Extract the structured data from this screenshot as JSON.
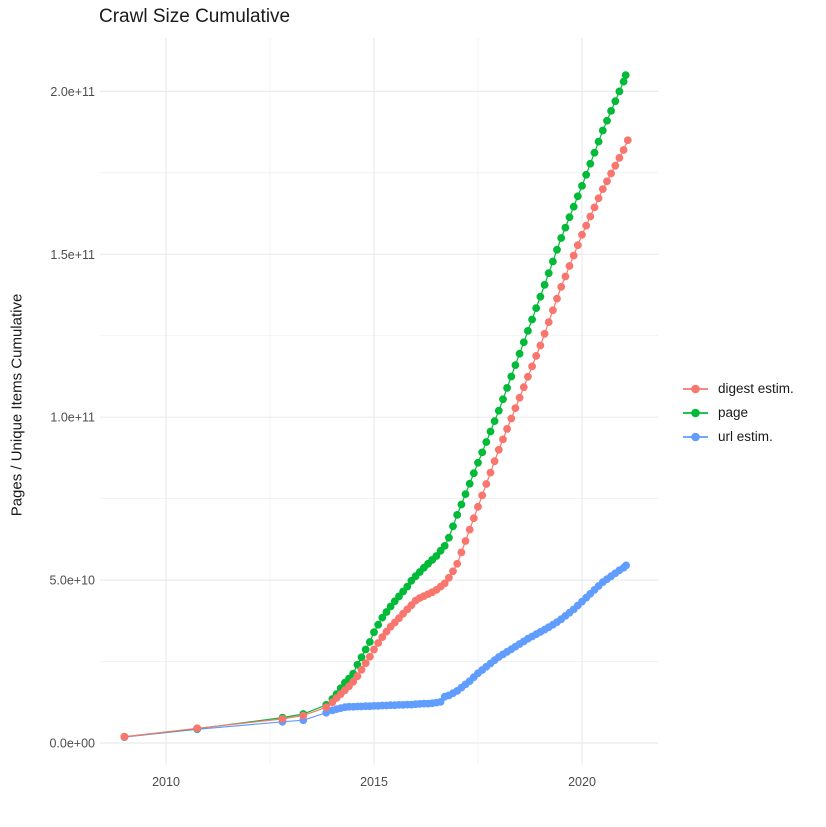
{
  "chart": {
    "title": "Crawl Size Cumulative",
    "y_axis_title": "Pages / Unique Items Cumulative",
    "x_axis": {
      "tick_labels": [
        "2010",
        "2015",
        "2020"
      ],
      "tick_values": [
        2010,
        2015,
        2020
      ],
      "minor_tick_values": [
        2012.5,
        2017.5
      ]
    },
    "y_axis": {
      "tick_labels": [
        "0.0e+00",
        "5.0e+10",
        "1.0e+11",
        "1.5e+11",
        "2.0e+11"
      ],
      "tick_values_billions": [
        0,
        50,
        100,
        150,
        200
      ],
      "minor_tick_values_billions": [
        25,
        75,
        125,
        175
      ]
    },
    "colors": {
      "background": "#FFFFFF",
      "grid": "#EBEBEB",
      "axis_text": "#4D4D4D",
      "title_text": "#1A1A1A",
      "digest": "#F8766D",
      "page": "#00BA38",
      "url": "#619CFF"
    }
  },
  "legend": {
    "items": [
      {
        "label": "digest estim.",
        "color": "#F8766D"
      },
      {
        "label": "page",
        "color": "#00BA38"
      },
      {
        "label": "url estim.",
        "color": "#619CFF"
      }
    ]
  },
  "chart_data": {
    "type": "line",
    "title": "Crawl Size Cumulative",
    "xlabel": "",
    "ylabel": "Pages / Unique Items Cumulative",
    "x_tick_labels": [
      "2010",
      "2015",
      "2020"
    ],
    "y_tick_labels": [
      "0.0e+00",
      "5.0e+10",
      "1.0e+11",
      "1.5e+11",
      "2.0e+11"
    ],
    "value_unit_note": "point y-values stored in billions (1e9 items)",
    "x_range": [
      2008.4,
      2021.8
    ],
    "y_range": [
      0,
      216000000000
    ],
    "grid": true,
    "legend_position": "right",
    "marker": "point",
    "series": [
      {
        "name": "digest estim.",
        "color": "#F8766D",
        "points": [
          [
            2009.0,
            1.9
          ],
          [
            2010.75,
            4.5
          ],
          [
            2012.8,
            7.4
          ],
          [
            2013.3,
            8.4
          ],
          [
            2013.85,
            11.0
          ],
          [
            2014.0,
            12.5
          ],
          [
            2014.1,
            13.8
          ],
          [
            2014.2,
            15.0
          ],
          [
            2014.3,
            16.2
          ],
          [
            2014.4,
            17.4
          ],
          [
            2014.5,
            18.8
          ],
          [
            2014.6,
            20.5
          ],
          [
            2014.7,
            22.5
          ],
          [
            2014.8,
            24.5
          ],
          [
            2014.9,
            26.5
          ],
          [
            2015.0,
            28.7
          ],
          [
            2015.1,
            30.7
          ],
          [
            2015.2,
            32.5
          ],
          [
            2015.3,
            34.2
          ],
          [
            2015.4,
            35.7
          ],
          [
            2015.5,
            37.0
          ],
          [
            2015.6,
            38.3
          ],
          [
            2015.7,
            39.7
          ],
          [
            2015.8,
            41.0
          ],
          [
            2015.9,
            42.3
          ],
          [
            2016.0,
            43.7
          ],
          [
            2016.1,
            44.5
          ],
          [
            2016.2,
            45.1
          ],
          [
            2016.3,
            45.7
          ],
          [
            2016.4,
            46.3
          ],
          [
            2016.5,
            47.0
          ],
          [
            2016.6,
            48.0
          ],
          [
            2016.7,
            49.0
          ],
          [
            2016.8,
            50.7
          ],
          [
            2016.9,
            52.7
          ],
          [
            2017.0,
            55.0
          ],
          [
            2017.1,
            58.5
          ],
          [
            2017.2,
            62.0
          ],
          [
            2017.3,
            65.5
          ],
          [
            2017.4,
            69.0
          ],
          [
            2017.5,
            72.5
          ],
          [
            2017.6,
            76.0
          ],
          [
            2017.7,
            79.5
          ],
          [
            2017.8,
            83.0
          ],
          [
            2017.9,
            86.5
          ],
          [
            2018.0,
            90.0
          ],
          [
            2018.1,
            93.2
          ],
          [
            2018.2,
            96.4
          ],
          [
            2018.3,
            99.6
          ],
          [
            2018.4,
            102.8
          ],
          [
            2018.5,
            106.0
          ],
          [
            2018.6,
            109.2
          ],
          [
            2018.7,
            112.4
          ],
          [
            2018.8,
            115.6
          ],
          [
            2018.9,
            118.8
          ],
          [
            2019.0,
            122.0
          ],
          [
            2019.1,
            125.6
          ],
          [
            2019.2,
            129.2
          ],
          [
            2019.3,
            132.8
          ],
          [
            2019.4,
            136.4
          ],
          [
            2019.5,
            140.0
          ],
          [
            2019.6,
            143.2
          ],
          [
            2019.7,
            146.4
          ],
          [
            2019.8,
            149.6
          ],
          [
            2019.9,
            152.8
          ],
          [
            2020.0,
            156.0
          ],
          [
            2020.1,
            158.8
          ],
          [
            2020.2,
            161.6
          ],
          [
            2020.3,
            164.4
          ],
          [
            2020.4,
            167.2
          ],
          [
            2020.5,
            170.0
          ],
          [
            2020.6,
            172.4
          ],
          [
            2020.7,
            174.8
          ],
          [
            2020.8,
            177.2
          ],
          [
            2020.9,
            179.6
          ],
          [
            2021.0,
            182.0
          ],
          [
            2021.1,
            185.0
          ]
        ]
      },
      {
        "name": "page",
        "color": "#00BA38",
        "points": [
          [
            2009.0,
            1.9
          ],
          [
            2010.75,
            4.4
          ],
          [
            2012.8,
            7.8
          ],
          [
            2013.3,
            8.9
          ],
          [
            2013.85,
            11.7
          ],
          [
            2014.0,
            13.5
          ],
          [
            2014.1,
            15.0
          ],
          [
            2014.2,
            16.8
          ],
          [
            2014.3,
            18.5
          ],
          [
            2014.4,
            19.8
          ],
          [
            2014.5,
            21.3
          ],
          [
            2014.6,
            24.0
          ],
          [
            2014.7,
            26.3
          ],
          [
            2014.8,
            28.7
          ],
          [
            2014.9,
            31.0
          ],
          [
            2015.0,
            34.0
          ],
          [
            2015.1,
            36.3
          ],
          [
            2015.2,
            38.5
          ],
          [
            2015.3,
            40.2
          ],
          [
            2015.4,
            41.9
          ],
          [
            2015.5,
            43.5
          ],
          [
            2015.6,
            45.0
          ],
          [
            2015.7,
            46.5
          ],
          [
            2015.8,
            48.0
          ],
          [
            2015.9,
            49.8
          ],
          [
            2016.0,
            51.2
          ],
          [
            2016.1,
            52.5
          ],
          [
            2016.2,
            53.8
          ],
          [
            2016.3,
            55.0
          ],
          [
            2016.4,
            56.2
          ],
          [
            2016.5,
            57.4
          ],
          [
            2016.6,
            59.0
          ],
          [
            2016.7,
            60.5
          ],
          [
            2016.8,
            63.0
          ],
          [
            2016.9,
            66.5
          ],
          [
            2017.0,
            70.0
          ],
          [
            2017.1,
            73.2
          ],
          [
            2017.2,
            76.4
          ],
          [
            2017.3,
            79.6
          ],
          [
            2017.4,
            82.8
          ],
          [
            2017.5,
            86.0
          ],
          [
            2017.6,
            89.2
          ],
          [
            2017.7,
            92.4
          ],
          [
            2017.8,
            95.6
          ],
          [
            2017.9,
            98.8
          ],
          [
            2018.0,
            102.0
          ],
          [
            2018.1,
            105.5
          ],
          [
            2018.2,
            109.0
          ],
          [
            2018.3,
            112.5
          ],
          [
            2018.4,
            116.0
          ],
          [
            2018.5,
            119.5
          ],
          [
            2018.6,
            123.0
          ],
          [
            2018.7,
            126.5
          ],
          [
            2018.8,
            130.0
          ],
          [
            2018.9,
            133.5
          ],
          [
            2019.0,
            137.0
          ],
          [
            2019.1,
            140.6
          ],
          [
            2019.2,
            144.2
          ],
          [
            2019.3,
            147.8
          ],
          [
            2019.4,
            151.4
          ],
          [
            2019.5,
            155.0
          ],
          [
            2019.6,
            158.2
          ],
          [
            2019.7,
            161.4
          ],
          [
            2019.8,
            164.6
          ],
          [
            2019.9,
            167.8
          ],
          [
            2020.0,
            171.0
          ],
          [
            2020.1,
            174.4
          ],
          [
            2020.2,
            177.8
          ],
          [
            2020.3,
            181.2
          ],
          [
            2020.4,
            184.6
          ],
          [
            2020.5,
            188.0
          ],
          [
            2020.6,
            191.0
          ],
          [
            2020.7,
            194.0
          ],
          [
            2020.8,
            197.0
          ],
          [
            2020.9,
            200.0
          ],
          [
            2021.0,
            203.0
          ],
          [
            2021.05,
            205.0
          ]
        ]
      },
      {
        "name": "url estim.",
        "color": "#619CFF",
        "points": [
          [
            2009.0,
            1.8
          ],
          [
            2010.75,
            4.2
          ],
          [
            2012.8,
            6.5
          ],
          [
            2013.3,
            7.0
          ],
          [
            2013.85,
            9.3
          ],
          [
            2014.0,
            10.0
          ],
          [
            2014.1,
            10.4
          ],
          [
            2014.2,
            10.7
          ],
          [
            2014.3,
            11.0
          ],
          [
            2014.4,
            11.1
          ],
          [
            2014.5,
            11.1
          ],
          [
            2014.6,
            11.2
          ],
          [
            2014.7,
            11.2
          ],
          [
            2014.8,
            11.3
          ],
          [
            2014.9,
            11.3
          ],
          [
            2015.0,
            11.4
          ],
          [
            2015.1,
            11.4
          ],
          [
            2015.2,
            11.5
          ],
          [
            2015.3,
            11.5
          ],
          [
            2015.4,
            11.6
          ],
          [
            2015.5,
            11.6
          ],
          [
            2015.6,
            11.7
          ],
          [
            2015.7,
            11.7
          ],
          [
            2015.8,
            11.8
          ],
          [
            2015.9,
            11.8
          ],
          [
            2016.0,
            11.9
          ],
          [
            2016.1,
            12.0
          ],
          [
            2016.2,
            12.1
          ],
          [
            2016.3,
            12.1
          ],
          [
            2016.4,
            12.2
          ],
          [
            2016.5,
            12.4
          ],
          [
            2016.6,
            12.6
          ],
          [
            2016.7,
            14.2
          ],
          [
            2016.8,
            14.6
          ],
          [
            2016.9,
            15.3
          ],
          [
            2017.0,
            16.0
          ],
          [
            2017.1,
            17.0
          ],
          [
            2017.2,
            18.0
          ],
          [
            2017.3,
            19.0
          ],
          [
            2017.4,
            20.2
          ],
          [
            2017.5,
            21.4
          ],
          [
            2017.6,
            22.4
          ],
          [
            2017.7,
            23.4
          ],
          [
            2017.8,
            24.4
          ],
          [
            2017.9,
            25.4
          ],
          [
            2018.0,
            26.4
          ],
          [
            2018.1,
            27.2
          ],
          [
            2018.2,
            28.0
          ],
          [
            2018.3,
            28.8
          ],
          [
            2018.4,
            29.6
          ],
          [
            2018.5,
            30.4
          ],
          [
            2018.6,
            31.2
          ],
          [
            2018.7,
            32.0
          ],
          [
            2018.8,
            32.7
          ],
          [
            2018.9,
            33.4
          ],
          [
            2019.0,
            34.1
          ],
          [
            2019.1,
            34.8
          ],
          [
            2019.2,
            35.5
          ],
          [
            2019.3,
            36.3
          ],
          [
            2019.4,
            37.1
          ],
          [
            2019.5,
            38.0
          ],
          [
            2019.6,
            39.0
          ],
          [
            2019.7,
            40.0
          ],
          [
            2019.8,
            41.0
          ],
          [
            2019.9,
            42.2
          ],
          [
            2020.0,
            43.4
          ],
          [
            2020.1,
            44.6
          ],
          [
            2020.2,
            45.8
          ],
          [
            2020.3,
            47.0
          ],
          [
            2020.4,
            48.2
          ],
          [
            2020.5,
            49.4
          ],
          [
            2020.6,
            50.3
          ],
          [
            2020.7,
            51.2
          ],
          [
            2020.8,
            52.1
          ],
          [
            2020.9,
            53.0
          ],
          [
            2021.0,
            53.8
          ],
          [
            2021.06,
            54.5
          ]
        ]
      }
    ]
  }
}
